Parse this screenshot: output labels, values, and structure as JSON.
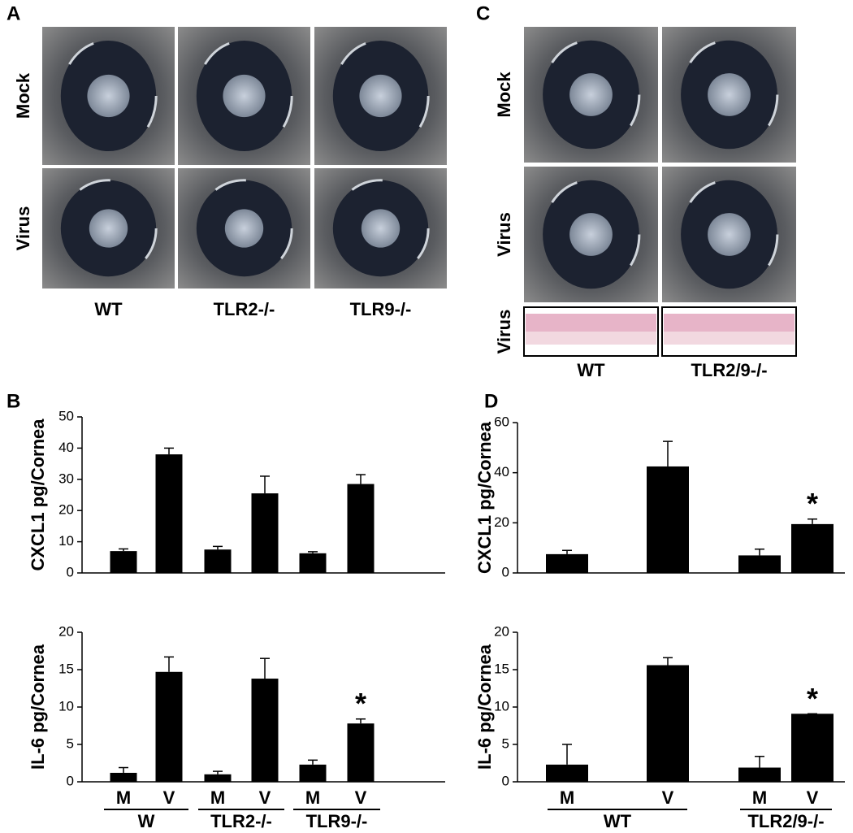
{
  "panel_a": {
    "letter": "A",
    "rows": [
      "Mock",
      "Virus"
    ],
    "columns": [
      "WT",
      "TLR2-/-",
      "TLR9-/-"
    ]
  },
  "panel_c": {
    "letter": "C",
    "rows": [
      "Mock",
      "Virus",
      "Virus"
    ],
    "columns": [
      "WT",
      "TLR2/9-/-"
    ]
  },
  "panel_b": {
    "letter": "B"
  },
  "panel_d": {
    "letter": "D"
  },
  "chart_data": [
    {
      "type": "bar",
      "ylabel": "CXCL1 pg/Cornea",
      "values": [
        7,
        38,
        7.5,
        25.5,
        6.3,
        28.5
      ],
      "errors": [
        0.7,
        2,
        1,
        5.5,
        0.5,
        3
      ],
      "ylim": [
        0,
        50
      ],
      "yticks": [
        0,
        10,
        20,
        30,
        40,
        50
      ],
      "color": "#000000"
    },
    {
      "type": "bar",
      "ylabel": "IL-6 pg/Cornea",
      "categories": [
        "M",
        "V",
        "M",
        "V",
        "M",
        "V"
      ],
      "groups": [
        "W",
        "TLR2-/-",
        "TLR9-/-"
      ],
      "values": [
        1.2,
        14.7,
        1.0,
        13.8,
        2.3,
        7.8
      ],
      "errors": [
        0.7,
        2,
        0.4,
        2.7,
        0.6,
        0.6
      ],
      "ylim": [
        0,
        20
      ],
      "yticks": [
        0,
        5,
        10,
        15,
        20
      ],
      "color": "#000000",
      "annotations": [
        {
          "text": "*",
          "index": 5
        }
      ]
    },
    {
      "type": "bar",
      "ylabel": "CXCL1 pg/Cornea",
      "values": [
        7.5,
        42.5,
        7,
        19.5
      ],
      "errors": [
        1.5,
        10,
        2.5,
        2
      ],
      "ylim": [
        0,
        60
      ],
      "yticks": [
        0,
        20,
        40,
        60
      ],
      "color": "#000000",
      "annotations": [
        {
          "text": "*",
          "index": 3
        }
      ]
    },
    {
      "type": "bar",
      "ylabel": "IL-6 pg/Cornea",
      "categories": [
        "M",
        "V",
        "M",
        "V"
      ],
      "groups": [
        "WT",
        "TLR2/9-/-"
      ],
      "values": [
        2.3,
        15.6,
        1.9,
        9.1
      ],
      "errors": [
        2.7,
        1,
        1.5,
        0
      ],
      "ylim": [
        0,
        20
      ],
      "yticks": [
        0,
        5,
        10,
        15,
        20
      ],
      "color": "#000000",
      "annotations": [
        {
          "text": "*",
          "index": 3
        }
      ]
    }
  ]
}
